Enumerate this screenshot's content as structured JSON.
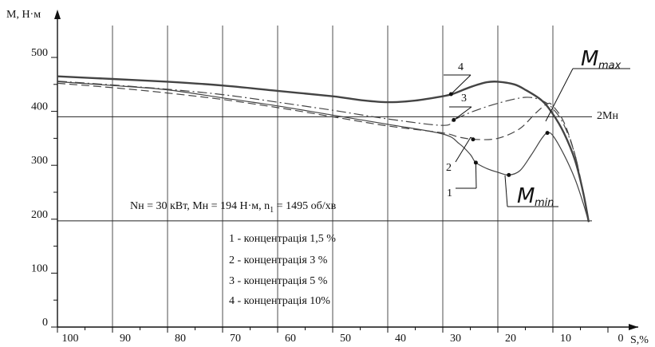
{
  "chart_data": {
    "type": "line",
    "xlabel": "S,%",
    "ylabel": "M, Н·м",
    "xlim": [
      100,
      0
    ],
    "ylim": [
      0,
      500
    ],
    "x_ticks": [
      100,
      90,
      80,
      70,
      60,
      50,
      40,
      30,
      20,
      10,
      0
    ],
    "y_ticks": [
      0,
      100,
      200,
      300,
      400,
      500
    ],
    "grid": "vertical",
    "params_text": "Nн = 30 кВт, Mн = 194 Н·м, n",
    "params_sub": "1",
    "params_tail": " = 1495 об/хв",
    "reference_lines": [
      {
        "y": 390,
        "label": "2Мн"
      },
      {
        "y": 197,
        "label": ""
      }
    ],
    "legend": [
      "1 - концентрація 1,5 %",
      "2 - концентрація 3 %",
      "3 - концентрація 5 %",
      "4 - концентрація 10%"
    ],
    "annotations": [
      {
        "main": "M",
        "sub": "max"
      },
      {
        "main": "M",
        "sub": "min"
      }
    ],
    "series": [
      {
        "name": "1",
        "style": "solid",
        "x": [
          100,
          90,
          80,
          70,
          60,
          50,
          40,
          30,
          27,
          25,
          24,
          22,
          20,
          18,
          16,
          14,
          12,
          11,
          10,
          8,
          6,
          4.5,
          3.5
        ],
        "y": [
          455,
          448,
          440,
          425,
          410,
          393,
          376,
          358,
          340,
          320,
          305,
          294,
          287,
          282,
          290,
          318,
          350,
          360,
          355,
          320,
          275,
          230,
          195
        ]
      },
      {
        "name": "2",
        "style": "dashed",
        "x": [
          100,
          90,
          80,
          70,
          60,
          50,
          40,
          30,
          27,
          24,
          20,
          16,
          13,
          11,
          10,
          8,
          6,
          4.5,
          3.5
        ],
        "y": [
          452,
          444,
          434,
          422,
          407,
          390,
          373,
          360,
          352,
          348,
          350,
          368,
          398,
          414,
          410,
          380,
          320,
          250,
          195
        ]
      },
      {
        "name": "3",
        "style": "dashdot",
        "x": [
          100,
          90,
          80,
          70,
          60,
          50,
          40,
          30,
          28,
          25,
          20,
          15,
          12,
          10,
          8,
          6,
          4.5,
          3.5
        ],
        "y": [
          456,
          449,
          441,
          431,
          417,
          402,
          386,
          374,
          384,
          398,
          415,
          426,
          420,
          405,
          375,
          320,
          250,
          195
        ]
      },
      {
        "name": "4",
        "style": "solid-bold",
        "x": [
          100,
          90,
          80,
          70,
          60,
          50,
          45,
          40,
          35,
          30,
          28,
          25,
          22,
          20,
          17,
          15,
          12,
          10,
          8,
          6,
          4.5,
          3.5
        ],
        "y": [
          465,
          460,
          455,
          448,
          438,
          428,
          421,
          417,
          420,
          428,
          433,
          445,
          454,
          455,
          450,
          440,
          420,
          395,
          360,
          310,
          250,
          195
        ]
      }
    ]
  }
}
